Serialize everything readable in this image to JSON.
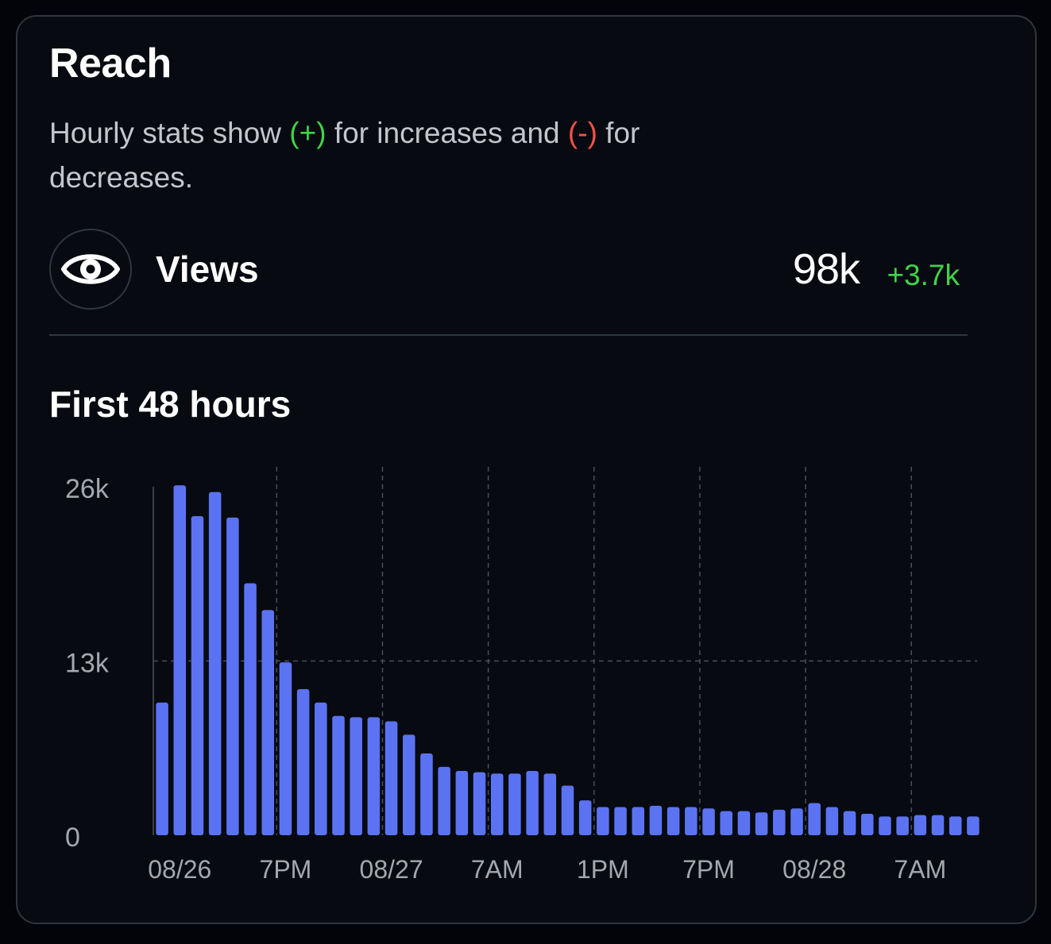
{
  "card": {
    "title": "Reach",
    "subtitle": {
      "part1": "Hourly stats show ",
      "plus": "(+)",
      "part2": " for increases and ",
      "minus": "(-)",
      "part3": " for decreases."
    }
  },
  "metric": {
    "icon": "eye-icon",
    "label": "Views",
    "value": "98k",
    "delta": "+3.7k"
  },
  "colors": {
    "bar": "#5b73f2",
    "positive": "#3fd34a",
    "negative": "#f85149"
  },
  "chart_data": {
    "type": "bar",
    "title": "First 48 hours",
    "ylim": [
      0,
      26000
    ],
    "yticks": [
      {
        "value": 0,
        "label": "0"
      },
      {
        "value": 13000,
        "label": "13k"
      },
      {
        "value": 26000,
        "label": "26k"
      }
    ],
    "xticks": [
      {
        "index": 1,
        "label": "08/26"
      },
      {
        "index": 7,
        "label": "7PM"
      },
      {
        "index": 13,
        "label": "08/27"
      },
      {
        "index": 19,
        "label": "7AM"
      },
      {
        "index": 25,
        "label": "1PM"
      },
      {
        "index": 31,
        "label": "7PM"
      },
      {
        "index": 37,
        "label": "08/28"
      },
      {
        "index": 43,
        "label": "7AM"
      }
    ],
    "values": [
      9900,
      26100,
      23800,
      25600,
      23700,
      18800,
      16800,
      12900,
      10900,
      9900,
      8900,
      8800,
      8800,
      8500,
      7500,
      6100,
      5100,
      4800,
      4700,
      4600,
      4600,
      4800,
      4600,
      3700,
      2600,
      2100,
      2100,
      2100,
      2200,
      2100,
      2100,
      2000,
      1800,
      1800,
      1700,
      1900,
      2000,
      2400,
      2100,
      1800,
      1600,
      1400,
      1400,
      1500,
      1500,
      1400,
      1400
    ],
    "grid": true,
    "legend": "none"
  }
}
